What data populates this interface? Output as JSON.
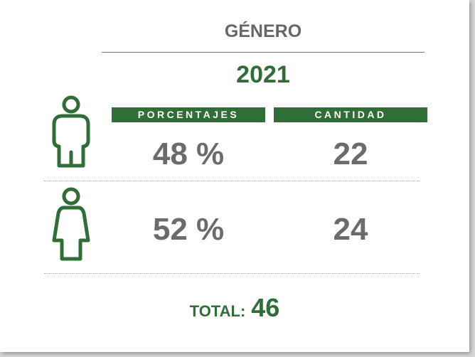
{
  "title": "GÉNERO",
  "year": "2021",
  "columns": [
    "PORCENTAJES",
    "CANTIDAD"
  ],
  "rows": [
    [
      "48 %",
      "22"
    ],
    [
      "52 %",
      "24"
    ]
  ],
  "total": {
    "label": "TOTAL:",
    "value": "46"
  }
}
